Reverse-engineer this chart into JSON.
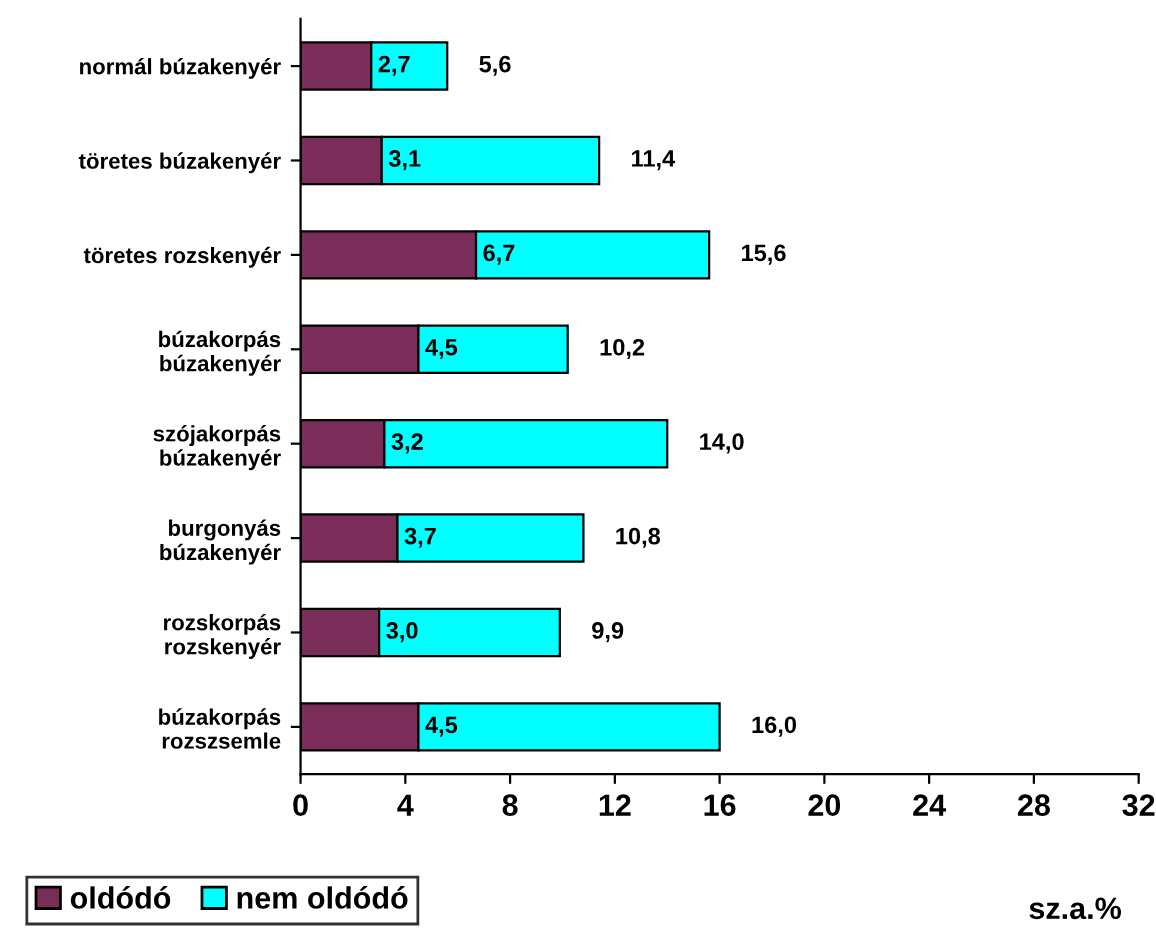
{
  "chart_data": {
    "type": "bar",
    "orientation": "horizontal",
    "stacked": true,
    "categories": [
      "normál búzakenyér",
      "töretes búzakenyér",
      "töretes rozskenyér",
      "búzakorpás\nbúzakenyér",
      "szójakorpás\nbúzakenyér",
      "burgonyás\nbúzakenyér",
      "rozskorpás\nrozskenyér",
      "búzakorpás\nrozszsemle"
    ],
    "series": [
      {
        "name": "oldódó",
        "color": "#7b2d5a",
        "values": [
          2.7,
          3.1,
          6.7,
          4.5,
          3.2,
          3.7,
          3.0,
          4.5
        ],
        "value_labels": [
          "2,7",
          "3,1",
          "6,7",
          "4,5",
          "3,2",
          "3,7",
          "3,0",
          "4,5"
        ]
      },
      {
        "name": "nem oldódó",
        "color": "#00ffff",
        "values": [
          2.9,
          8.3,
          8.9,
          5.7,
          10.8,
          7.1,
          6.9,
          11.5
        ]
      }
    ],
    "totals": [
      "5,6",
      "11,4",
      "15,6",
      "10,2",
      "14,0",
      "10,8",
      "9,9",
      "16,0"
    ],
    "xlim": [
      0,
      32
    ],
    "xticks": [
      0,
      4,
      8,
      12,
      16,
      20,
      24,
      28,
      32
    ],
    "xlabel": "sz.a.%",
    "legend": "bottom left",
    "grid": false
  }
}
